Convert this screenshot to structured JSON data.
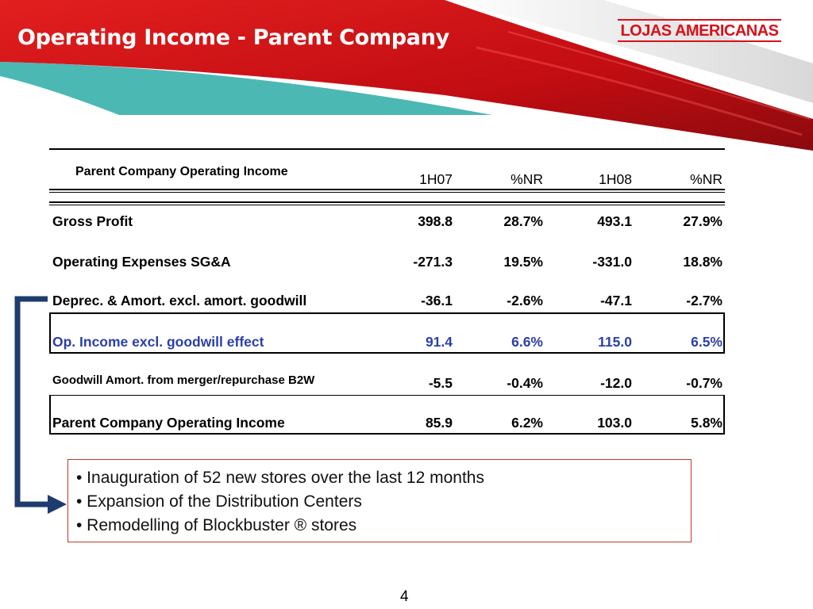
{
  "slide": {
    "title": "Operating Income - Parent Company",
    "logo": "LOJAS AMERICANAS",
    "page_number": "4"
  },
  "table": {
    "header_label": "Parent Company Operating Income",
    "columns": [
      "1H07",
      "%NR",
      "1H08",
      "%NR"
    ],
    "rows": [
      {
        "label": "Gross Profit",
        "values": [
          "398.8",
          "28.7%",
          "493.1",
          "27.9%"
        ]
      },
      {
        "label": "Operating Expenses SG&A",
        "values": [
          "-271.3",
          "19.5%",
          "-331.0",
          "18.8%"
        ]
      },
      {
        "label": "Deprec. & Amort. excl. amort. goodwill",
        "values": [
          "-36.1",
          "-2.6%",
          "-47.1",
          "-2.7%"
        ]
      },
      {
        "label": "Op. Income excl. goodwill effect",
        "values": [
          "91.4",
          "6.6%",
          "115.0",
          "6.5%"
        ]
      },
      {
        "label": "Goodwill Amort. from merger/repurchase B2W",
        "values": [
          "-5.5",
          "-0.4%",
          "-12.0",
          "-0.7%"
        ]
      },
      {
        "label": "Parent Company Operating Income",
        "values": [
          "85.9",
          "6.2%",
          "103.0",
          "5.8%"
        ]
      }
    ]
  },
  "bullets": [
    "• Inauguration of 52 new stores over the last 12 months",
    "• Expansion of the Distribution Centers",
    "• Remodelling of Blockbuster ® stores"
  ],
  "colors": {
    "header_red": "#d8101a",
    "teal": "#4bb8b4",
    "highlight_blue": "#2b3fa8",
    "bracket_navy": "#1f3c6e"
  }
}
